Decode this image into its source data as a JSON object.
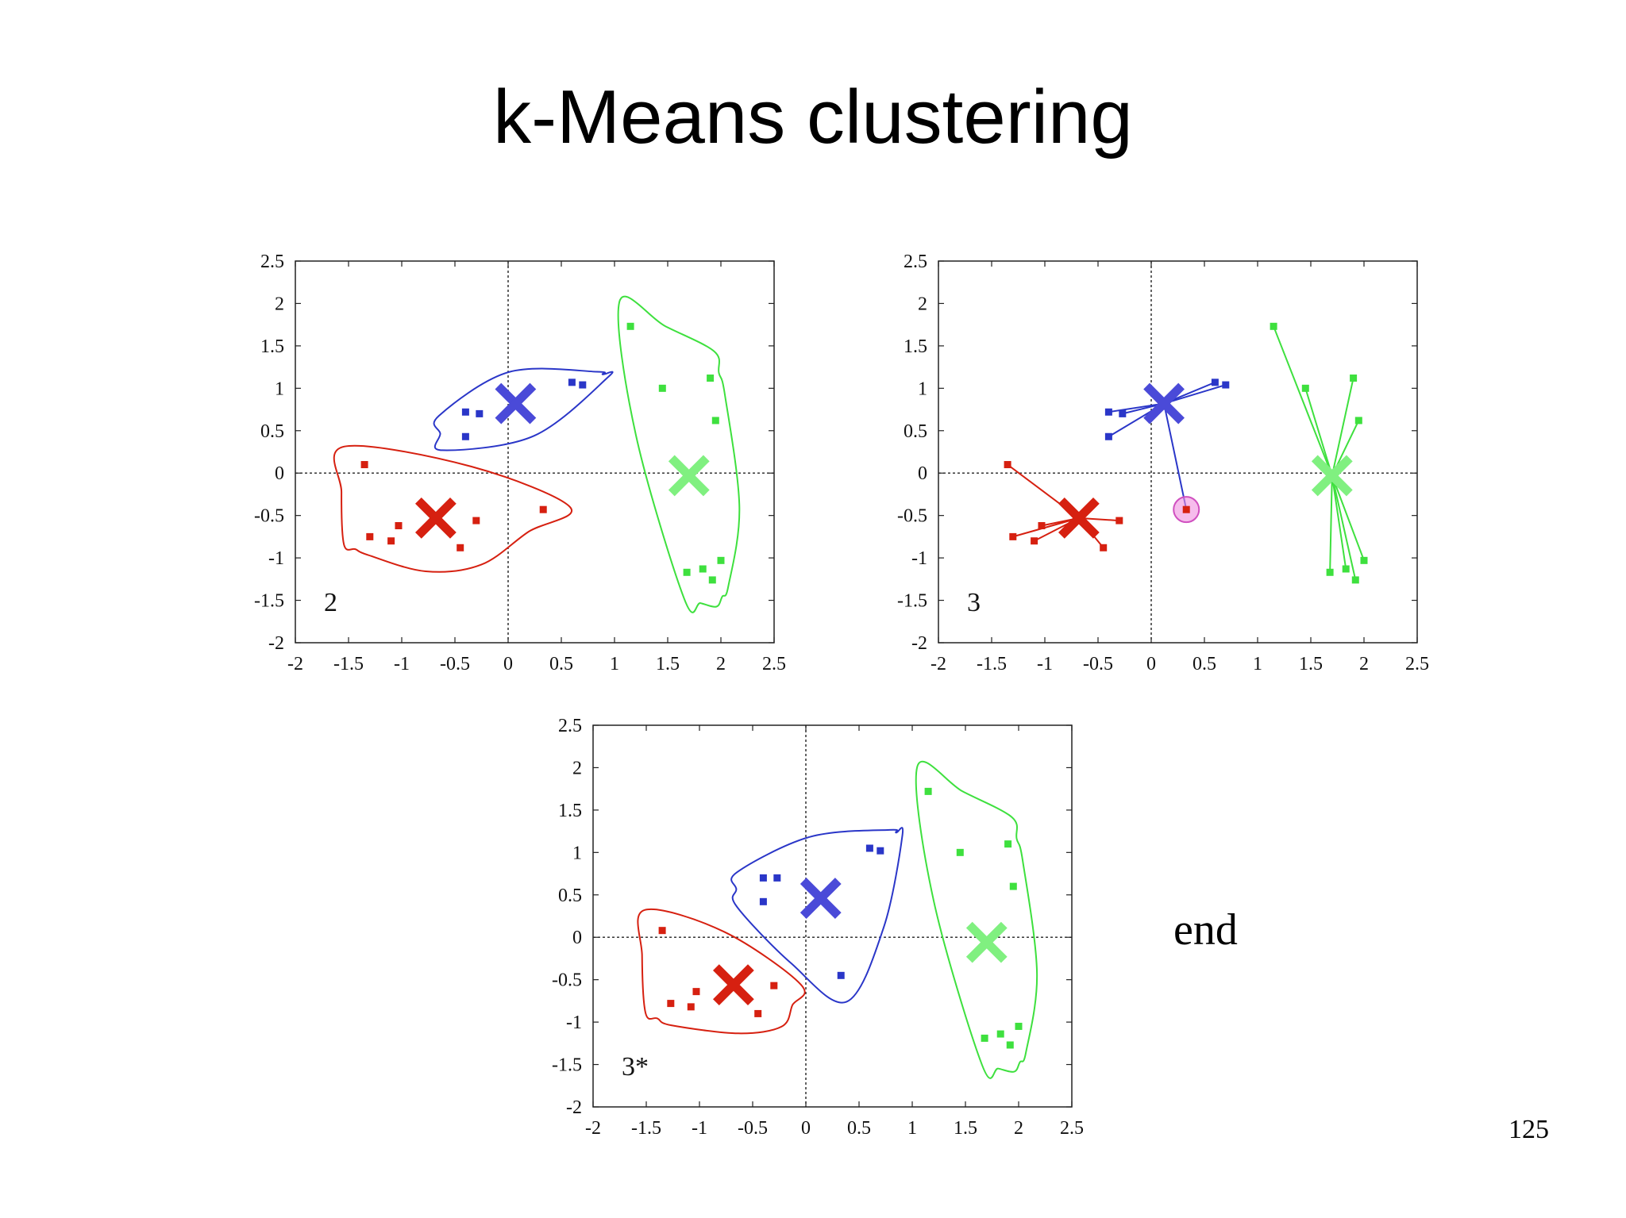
{
  "title": "k-Means clustering",
  "end_label": "end",
  "page_number": "125",
  "colors": {
    "red": "#d62010",
    "blue": "#2a36c8",
    "green": "#3ee03e",
    "blue_x": "#4a4ad8",
    "green_x": "#80f080",
    "highlight": "#f090e0"
  },
  "chart_data": [
    {
      "type": "scatter",
      "panel_label": "2",
      "xlim": [
        -2,
        2.5
      ],
      "ylim": [
        -2,
        2.5
      ],
      "xticks": [
        "-2",
        "-1.5",
        "-1",
        "-0.5",
        "0",
        "0.5",
        "1",
        "1.5",
        "2",
        "2.5"
      ],
      "yticks": [
        "2.5",
        "2",
        "1.5",
        "1",
        "0.5",
        "0",
        "-0.5",
        "-1",
        "-1.5",
        "-2"
      ],
      "series": [
        {
          "color": "red",
          "points": [
            [
              -1.35,
              0.1
            ],
            [
              -1.3,
              -0.75
            ],
            [
              -1.1,
              -0.8
            ],
            [
              -1.03,
              -0.62
            ],
            [
              -0.45,
              -0.88
            ],
            [
              -0.3,
              -0.56
            ],
            [
              0.33,
              -0.43
            ]
          ],
          "centroid": [
            -0.68,
            -0.53
          ]
        },
        {
          "color": "blue",
          "points": [
            [
              -0.4,
              0.72
            ],
            [
              -0.27,
              0.7
            ],
            [
              -0.4,
              0.43
            ],
            [
              0.6,
              1.07
            ],
            [
              0.7,
              1.04
            ]
          ],
          "centroid": [
            0.07,
            0.82
          ]
        },
        {
          "color": "green",
          "points": [
            [
              1.15,
              1.73
            ],
            [
              1.45,
              1.0
            ],
            [
              1.9,
              1.12
            ],
            [
              1.95,
              0.62
            ],
            [
              1.68,
              -1.17
            ],
            [
              1.83,
              -1.13
            ],
            [
              1.92,
              -1.26
            ],
            [
              2.0,
              -1.03
            ]
          ],
          "centroid": [
            1.7,
            -0.03
          ]
        }
      ],
      "outline": true
    },
    {
      "type": "scatter",
      "panel_label": "3",
      "xlim": [
        -2,
        2.5
      ],
      "ylim": [
        -2,
        2.5
      ],
      "xticks": [
        "-2",
        "-1.5",
        "-1",
        "-0.5",
        "0",
        "0.5",
        "1",
        "1.5",
        "2",
        "2.5"
      ],
      "yticks": [
        "2.5",
        "2",
        "1.5",
        "1",
        "0.5",
        "0",
        "-0.5",
        "-1",
        "-1.5",
        "-2"
      ],
      "series": [
        {
          "color": "red",
          "points": [
            [
              -1.35,
              0.1
            ],
            [
              -1.3,
              -0.75
            ],
            [
              -1.1,
              -0.8
            ],
            [
              -1.03,
              -0.62
            ],
            [
              -0.45,
              -0.88
            ],
            [
              -0.3,
              -0.56
            ]
          ],
          "centroid": [
            -0.68,
            -0.53
          ]
        },
        {
          "color": "blue",
          "points": [
            [
              -0.4,
              0.72
            ],
            [
              -0.27,
              0.7
            ],
            [
              -0.4,
              0.43
            ],
            [
              0.6,
              1.07
            ],
            [
              0.7,
              1.04
            ],
            [
              0.33,
              -0.43
            ]
          ],
          "centroid": [
            0.12,
            0.82
          ]
        },
        {
          "color": "green",
          "points": [
            [
              1.15,
              1.73
            ],
            [
              1.45,
              1.0
            ],
            [
              1.9,
              1.12
            ],
            [
              1.95,
              0.62
            ],
            [
              1.68,
              -1.17
            ],
            [
              1.83,
              -1.13
            ],
            [
              1.92,
              -1.26
            ],
            [
              2.0,
              -1.03
            ]
          ],
          "centroid": [
            1.7,
            -0.03
          ]
        }
      ],
      "highlight_point": [
        0.33,
        -0.43
      ],
      "connect_lines": true
    },
    {
      "type": "scatter",
      "panel_label": "3*",
      "xlim": [
        -2,
        2.5
      ],
      "ylim": [
        -2,
        2.5
      ],
      "xticks": [
        "-2",
        "-1.5",
        "-1",
        "-0.5",
        "0",
        "0.5",
        "1",
        "1.5",
        "2",
        "2.5"
      ],
      "yticks": [
        "2.5",
        "2",
        "1.5",
        "1",
        "0.5",
        "0",
        "-0.5",
        "-1",
        "-1.5",
        "-2"
      ],
      "series": [
        {
          "color": "red",
          "points": [
            [
              -1.35,
              0.08
            ],
            [
              -1.27,
              -0.78
            ],
            [
              -1.08,
              -0.82
            ],
            [
              -1.03,
              -0.64
            ],
            [
              -0.45,
              -0.9
            ],
            [
              -0.3,
              -0.57
            ]
          ],
          "centroid": [
            -0.68,
            -0.56
          ]
        },
        {
          "color": "blue",
          "points": [
            [
              -0.4,
              0.7
            ],
            [
              -0.27,
              0.7
            ],
            [
              -0.4,
              0.42
            ],
            [
              0.6,
              1.05
            ],
            [
              0.7,
              1.02
            ],
            [
              0.33,
              -0.45
            ]
          ],
          "centroid": [
            0.14,
            0.46
          ]
        },
        {
          "color": "green",
          "points": [
            [
              1.15,
              1.72
            ],
            [
              1.45,
              1.0
            ],
            [
              1.9,
              1.1
            ],
            [
              1.95,
              0.6
            ],
            [
              1.68,
              -1.19
            ],
            [
              1.83,
              -1.14
            ],
            [
              1.92,
              -1.27
            ],
            [
              2.0,
              -1.05
            ]
          ],
          "centroid": [
            1.7,
            -0.06
          ]
        }
      ],
      "outline": true
    }
  ]
}
